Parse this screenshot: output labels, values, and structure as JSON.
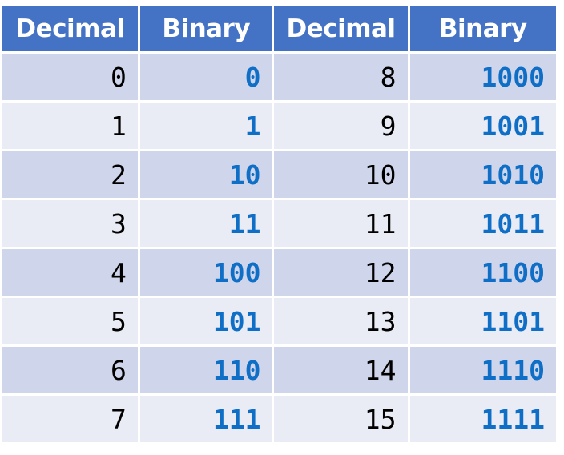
{
  "table": {
    "headers": [
      "Decimal",
      "Binary",
      "Decimal",
      "Binary"
    ],
    "rows": [
      {
        "d1": "0",
        "b1": "0",
        "d2": "8",
        "b2": "1000"
      },
      {
        "d1": "1",
        "b1": "1",
        "d2": "9",
        "b2": "1001"
      },
      {
        "d1": "2",
        "b1": "10",
        "d2": "10",
        "b2": "1010"
      },
      {
        "d1": "3",
        "b1": "11",
        "d2": "11",
        "b2": "1011"
      },
      {
        "d1": "4",
        "b1": "100",
        "d2": "12",
        "b2": "1100"
      },
      {
        "d1": "5",
        "b1": "101",
        "d2": "13",
        "b2": "1101"
      },
      {
        "d1": "6",
        "b1": "110",
        "d2": "14",
        "b2": "1110"
      },
      {
        "d1": "7",
        "b1": "111",
        "d2": "15",
        "b2": "1111"
      }
    ]
  },
  "colors": {
    "header_bg": "#4472c4",
    "header_text": "#ffffff",
    "row_band_dark": "#cfd5ea",
    "row_band_light": "#e9ebf5",
    "binary_text": "#0f6fc6",
    "decimal_text": "#000000"
  }
}
